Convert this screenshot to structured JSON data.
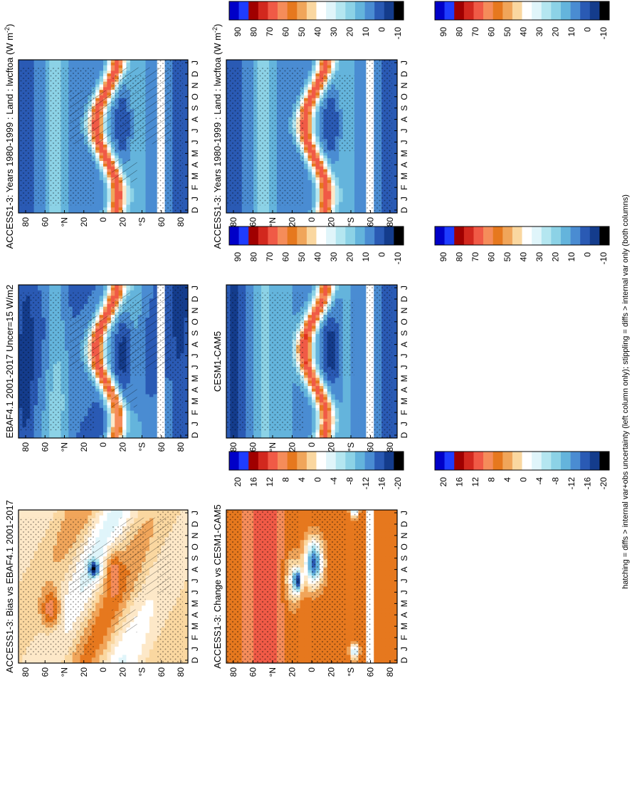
{
  "footnote": "hatching = diffs > internal var+obs uncertainty (left column only); stippling = diffs > internal var only (both columns)",
  "chart_data": [
    {
      "type": "heatmap",
      "id": "access-left",
      "title": "ACCESS1-3: Years 1980-1999 : Land : lwcftoa (W m",
      "title_sup": "-2",
      "title_close": ")",
      "x_ticks": [
        "D",
        "J",
        "F",
        "M",
        "A",
        "M",
        "J",
        "J",
        "A",
        "S",
        "O",
        "N",
        "D",
        "J"
      ],
      "y_ticks": [
        "80",
        "60",
        "°N",
        "20",
        "0",
        "20",
        "°S",
        "60",
        "80"
      ],
      "ylim": [
        -90,
        90
      ],
      "colorbar_ticks": [
        "90",
        "80",
        "70",
        "60",
        "50",
        "40",
        "30",
        "20",
        "10",
        "0",
        "-10"
      ],
      "colorbar_scale": "abs",
      "field": "abs",
      "model": "access",
      "stipple": true,
      "hatch": true
    },
    {
      "type": "heatmap",
      "id": "access-right",
      "title": "ACCESS1-3: Years 1980-1999 : Land : lwcftoa (W m",
      "title_sup": "-2",
      "title_close": ")",
      "x_ticks": [
        "D",
        "J",
        "F",
        "M",
        "A",
        "M",
        "J",
        "J",
        "A",
        "S",
        "O",
        "N",
        "D",
        "J"
      ],
      "y_ticks": [
        "80",
        "60",
        "°N",
        "20",
        "0",
        "20",
        "°S",
        "60",
        "80"
      ],
      "ylim": [
        -90,
        90
      ],
      "colorbar_ticks": [
        "90",
        "80",
        "70",
        "60",
        "50",
        "40",
        "30",
        "20",
        "10",
        "0",
        "-10"
      ],
      "colorbar_scale": "abs",
      "field": "abs",
      "model": "access",
      "stipple": true,
      "hatch": false
    },
    {
      "type": "heatmap",
      "id": "ebaf",
      "title": "EBAF4.1 2001-2017 Uncer=15 W/m2",
      "x_ticks": [
        "D",
        "J",
        "F",
        "M",
        "A",
        "M",
        "J",
        "J",
        "A",
        "S",
        "O",
        "N",
        "D",
        "J"
      ],
      "y_ticks": [
        "80",
        "60",
        "°N",
        "20",
        "0",
        "20",
        "°S",
        "60",
        "80"
      ],
      "ylim": [
        -90,
        90
      ],
      "colorbar_ticks": [
        "90",
        "80",
        "70",
        "60",
        "50",
        "40",
        "30",
        "20",
        "10",
        "0",
        "-10"
      ],
      "colorbar_scale": "abs",
      "field": "abs",
      "model": "ebaf",
      "stipple": true,
      "hatch": true
    },
    {
      "type": "heatmap",
      "id": "cesm",
      "title": "CESM1-CAM5",
      "x_ticks": [
        "D",
        "J",
        "F",
        "M",
        "A",
        "M",
        "J",
        "J",
        "A",
        "S",
        "O",
        "N",
        "D",
        "J"
      ],
      "y_ticks": [
        "80",
        "60",
        "°N",
        "20",
        "0",
        "20",
        "°S",
        "60",
        "80"
      ],
      "ylim": [
        -90,
        90
      ],
      "colorbar_ticks": [
        "90",
        "80",
        "70",
        "60",
        "50",
        "40",
        "30",
        "20",
        "10",
        "0",
        "-10"
      ],
      "colorbar_scale": "abs",
      "field": "abs",
      "model": "cesm",
      "stipple": true,
      "hatch": false
    },
    {
      "type": "heatmap",
      "id": "bias",
      "title": "ACCESS1-3: Bias vs EBAF4.1 2001-2017",
      "x_ticks": [
        "D",
        "J",
        "F",
        "M",
        "A",
        "M",
        "J",
        "J",
        "A",
        "S",
        "O",
        "N",
        "D",
        "J"
      ],
      "y_ticks": [
        "80",
        "60",
        "°N",
        "20",
        "0",
        "20",
        "°S",
        "60",
        "80"
      ],
      "ylim": [
        -90,
        90
      ],
      "colorbar_ticks": [
        "20",
        "16",
        "12",
        "8",
        "4",
        "0",
        "-4",
        "-8",
        "-12",
        "-16",
        "-20"
      ],
      "colorbar_scale": "diff",
      "field": "diff",
      "model": "bias",
      "stipple": true,
      "hatch": true
    },
    {
      "type": "heatmap",
      "id": "change",
      "title": "ACCESS1-3: Change vs CESM1-CAM5",
      "x_ticks": [
        "D",
        "J",
        "F",
        "M",
        "A",
        "M",
        "J",
        "J",
        "A",
        "S",
        "O",
        "N",
        "D",
        "J"
      ],
      "y_ticks": [
        "80",
        "60",
        "°N",
        "20",
        "0",
        "20",
        "°S",
        "60",
        "80"
      ],
      "ylim": [
        -90,
        90
      ],
      "colorbar_ticks": [
        "20",
        "16",
        "12",
        "8",
        "4",
        "0",
        "-4",
        "-8",
        "-12",
        "-16",
        "-20"
      ],
      "colorbar_scale": "diff",
      "field": "diff",
      "model": "change",
      "stipple": true,
      "hatch": false
    }
  ]
}
